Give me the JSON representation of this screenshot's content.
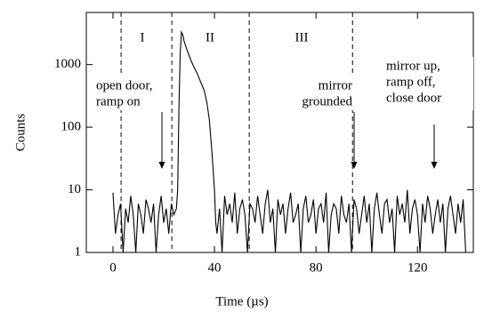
{
  "chart_data": {
    "type": "line",
    "xlabel": "Time (µs)",
    "ylabel": "Counts",
    "color": "#000000",
    "log_y": true,
    "xlim": [
      -10.5,
      142
    ],
    "ylim": [
      1,
      6800
    ],
    "xticks": [
      0,
      40,
      80,
      120
    ],
    "yticks": [
      1,
      10,
      100,
      1000
    ],
    "vlines": [
      3.2,
      23.2,
      53.7,
      94.4
    ],
    "regions": [
      "I",
      "II",
      "III"
    ],
    "annotations": [
      {
        "lines": [
          "open door,",
          "ramp on"
        ]
      },
      {
        "lines": [
          "mirror",
          "grounded"
        ]
      },
      {
        "lines": [
          "mirror up,",
          "ramp off,",
          "close door"
        ]
      }
    ],
    "x": [
      0,
      1,
      2,
      3,
      4,
      5,
      6,
      7,
      8,
      9,
      10,
      11,
      12,
      13,
      14,
      15,
      16,
      17,
      18,
      19,
      20,
      21,
      22,
      23,
      24,
      25,
      25.5,
      26,
      26.5,
      27,
      27.5,
      28,
      29,
      30,
      31,
      32,
      33,
      34,
      35,
      36,
      37,
      38,
      39,
      40,
      40.5,
      41,
      42,
      43,
      44,
      45,
      46,
      47,
      48,
      49,
      50,
      51,
      52,
      53,
      54,
      55,
      56,
      57,
      58,
      59,
      60,
      61,
      62,
      63,
      64,
      65,
      66,
      67,
      68,
      69,
      70,
      71,
      72,
      73,
      74,
      75,
      76,
      77,
      78,
      79,
      80,
      81,
      82,
      83,
      84,
      85,
      86,
      87,
      88,
      89,
      90,
      91,
      92,
      93,
      94,
      95,
      96,
      97,
      98,
      99,
      100,
      101,
      102,
      103,
      104,
      105,
      106,
      107,
      108,
      109,
      110,
      111,
      112,
      113,
      114,
      115,
      116,
      117,
      118,
      119,
      120,
      121,
      122,
      123,
      124,
      125,
      126,
      127,
      128,
      129,
      130,
      131,
      132,
      133,
      134,
      135,
      136,
      137,
      138,
      139
    ],
    "values": [
      9,
      2,
      4,
      6,
      1,
      5,
      3,
      8,
      4,
      1,
      6,
      4,
      2,
      7,
      5,
      3,
      6,
      1,
      4,
      8,
      3,
      5,
      2,
      6,
      4,
      5,
      10,
      200,
      1500,
      3300,
      3000,
      2400,
      1800,
      1400,
      1100,
      900,
      750,
      600,
      480,
      380,
      250,
      130,
      40,
      10,
      3,
      2,
      5,
      1,
      8,
      4,
      6,
      3,
      9,
      2,
      5,
      7,
      4,
      1,
      6,
      5,
      3,
      8,
      4,
      2,
      6,
      10,
      3,
      5,
      1,
      7,
      4,
      6,
      2,
      5,
      9,
      3,
      4,
      6,
      1,
      5,
      8,
      3,
      4,
      7,
      2,
      5,
      6,
      3,
      9,
      1,
      4,
      6,
      5,
      2,
      8,
      4,
      3,
      6,
      1,
      7,
      5,
      2,
      4,
      8,
      3,
      6,
      1,
      5,
      9,
      4,
      2,
      6,
      7,
      3,
      5,
      1,
      8,
      4,
      6,
      3,
      10,
      2,
      5,
      7,
      4,
      1,
      6,
      3,
      8,
      5,
      2,
      4,
      7,
      3,
      6,
      1,
      5,
      8,
      4,
      2,
      6,
      3,
      7,
      1
    ]
  }
}
